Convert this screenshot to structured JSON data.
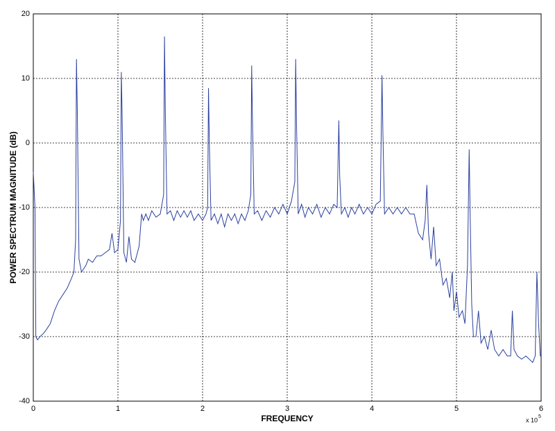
{
  "chart_data": {
    "type": "line",
    "x_label": "FREQUENCY",
    "y_label": "POWER SPECTRUM MAGNITUDE (dB)",
    "x_multiplier": "x 10",
    "x_exponent": "5",
    "xlim": [
      0,
      6
    ],
    "xticks": [
      0,
      1,
      2,
      3,
      4,
      5,
      6
    ],
    "ylim": [
      -40,
      20
    ],
    "yticks": [
      -40,
      -30,
      -20,
      -10,
      0,
      10,
      20
    ],
    "grid": true,
    "x": [
      0,
      0.02,
      0.03,
      0.05,
      0.08,
      0.12,
      0.15,
      0.2,
      0.25,
      0.3,
      0.35,
      0.4,
      0.45,
      0.48,
      0.5,
      0.51,
      0.52,
      0.54,
      0.57,
      0.62,
      0.65,
      0.7,
      0.75,
      0.8,
      0.85,
      0.9,
      0.93,
      0.96,
      1.0,
      1.03,
      1.04,
      1.05,
      1.07,
      1.1,
      1.13,
      1.16,
      1.2,
      1.25,
      1.28,
      1.3,
      1.33,
      1.36,
      1.4,
      1.45,
      1.5,
      1.54,
      1.55,
      1.56,
      1.58,
      1.62,
      1.66,
      1.7,
      1.74,
      1.78,
      1.82,
      1.86,
      1.9,
      1.95,
      2.0,
      2.04,
      2.06,
      2.07,
      2.08,
      2.1,
      2.14,
      2.18,
      2.22,
      2.26,
      2.3,
      2.34,
      2.38,
      2.42,
      2.46,
      2.5,
      2.54,
      2.57,
      2.58,
      2.59,
      2.61,
      2.65,
      2.7,
      2.75,
      2.8,
      2.85,
      2.9,
      2.95,
      3.0,
      3.05,
      3.09,
      3.1,
      3.11,
      3.13,
      3.17,
      3.21,
      3.25,
      3.3,
      3.35,
      3.4,
      3.45,
      3.5,
      3.55,
      3.59,
      3.61,
      3.62,
      3.64,
      3.68,
      3.72,
      3.76,
      3.8,
      3.85,
      3.9,
      3.95,
      4.0,
      4.05,
      4.1,
      4.12,
      4.13,
      4.15,
      4.2,
      4.25,
      4.3,
      4.35,
      4.4,
      4.45,
      4.5,
      4.55,
      4.6,
      4.63,
      4.65,
      4.67,
      4.7,
      4.73,
      4.76,
      4.8,
      4.84,
      4.88,
      4.92,
      4.95,
      4.97,
      5.0,
      5.03,
      5.07,
      5.1,
      5.13,
      5.15,
      5.16,
      5.18,
      5.2,
      5.23,
      5.26,
      5.29,
      5.33,
      5.37,
      5.41,
      5.45,
      5.5,
      5.55,
      5.6,
      5.64,
      5.66,
      5.68,
      5.72,
      5.77,
      5.82,
      5.86,
      5.9,
      5.93,
      5.95,
      5.97,
      5.99,
      6.0
    ],
    "series": [
      {
        "color": "#2a3f9e",
        "values": [
          -4.5,
          -10,
          -30,
          -30.5,
          -30,
          -29.5,
          -29,
          -28,
          -26,
          -24.5,
          -23.5,
          -22.5,
          -21,
          -20,
          -15,
          13,
          5,
          -18,
          -20,
          -19,
          -18,
          -18.5,
          -17.5,
          -17.5,
          -17,
          -16.5,
          -14,
          -17,
          -16.5,
          -12,
          11,
          4,
          -17,
          -18.5,
          -14.5,
          -18,
          -18.5,
          -16,
          -11,
          -12,
          -11,
          -12,
          -10.5,
          -11.5,
          -11,
          -8,
          16.5,
          5,
          -11,
          -10.5,
          -12,
          -10.5,
          -11.5,
          -10.5,
          -11.5,
          -10.5,
          -12,
          -11,
          -12,
          -11,
          -10,
          8.5,
          0,
          -12,
          -11,
          -12.5,
          -11,
          -13,
          -11,
          -12,
          -11,
          -12.5,
          -11,
          -12,
          -10.5,
          -8,
          12,
          3,
          -11,
          -10.5,
          -12,
          -10.5,
          -11.5,
          -10,
          -11,
          -9.5,
          -11,
          -9,
          -6,
          13,
          3,
          -11,
          -9.5,
          -11.5,
          -10,
          -11,
          -9.5,
          -11.5,
          -10,
          -11,
          -9.5,
          -10,
          3.5,
          -5,
          -11,
          -10,
          -11.5,
          -10,
          -11,
          -9.5,
          -11,
          -10,
          -11,
          -9.5,
          -9,
          10.5,
          2,
          -11,
          -10,
          -11,
          -10,
          -11,
          -10,
          -11,
          -11,
          -14,
          -15,
          -12,
          -6.5,
          -14,
          -18,
          -13,
          -19,
          -18,
          -22,
          -21,
          -24,
          -20,
          -26,
          -23,
          -27,
          -26,
          -28,
          -19,
          -1,
          -10,
          -25,
          -30,
          -30,
          -26,
          -31,
          -30,
          -32,
          -29,
          -32,
          -33,
          -32,
          -33,
          -33,
          -26,
          -32,
          -33,
          -33.5,
          -33,
          -33.5,
          -34,
          -33,
          -20,
          -28,
          -33,
          -33
        ]
      }
    ]
  }
}
